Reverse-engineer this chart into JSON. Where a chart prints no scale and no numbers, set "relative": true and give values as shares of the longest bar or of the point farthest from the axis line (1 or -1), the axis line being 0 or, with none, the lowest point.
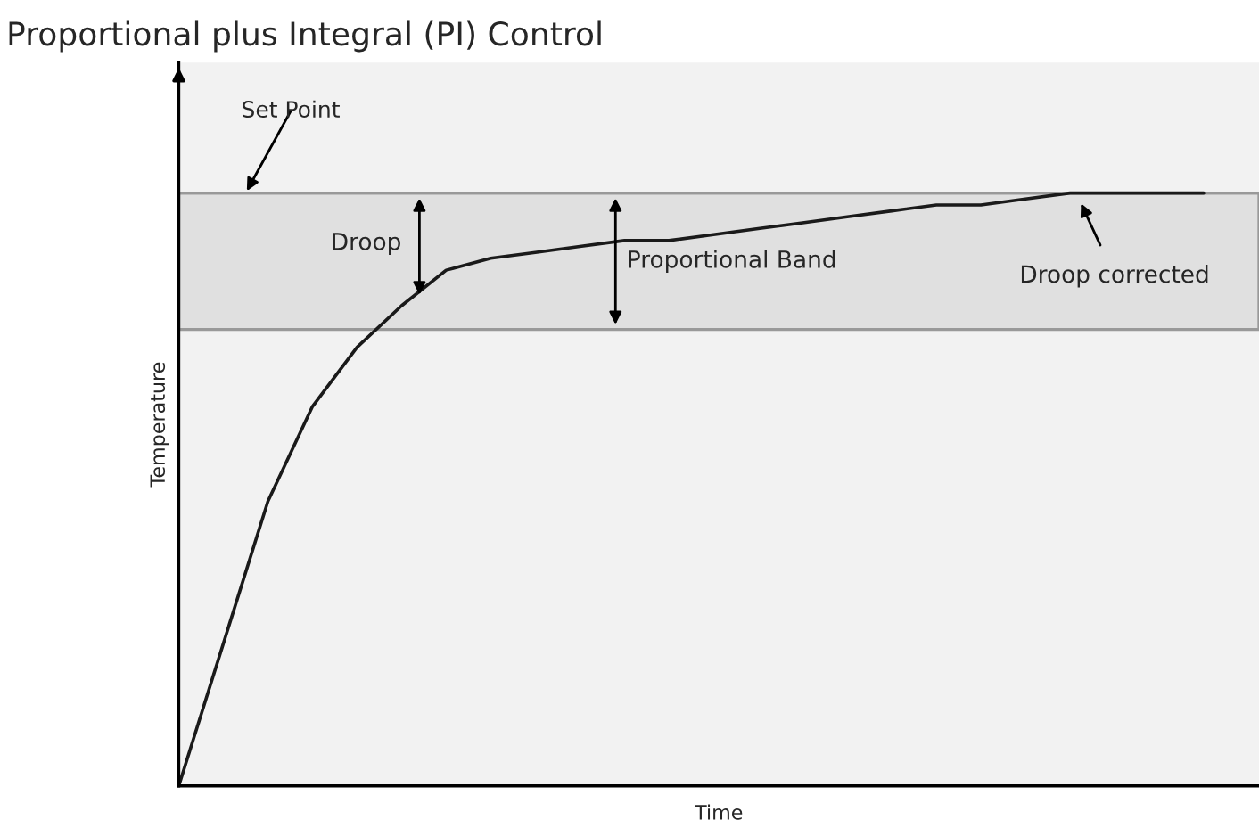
{
  "chart_data": {
    "type": "line",
    "title": "Proportional plus Integral (PI) Control",
    "xlabel": "Time",
    "ylabel": "Temperature",
    "relative": true,
    "categories": [
      null,
      null,
      null,
      null,
      null,
      null,
      null,
      null,
      null,
      null,
      null,
      null,
      null,
      null,
      null,
      null,
      null,
      null,
      null,
      null,
      null,
      null,
      null,
      null,
      null
    ],
    "series": [
      {
        "color": "#1a1a1a",
        "values": [
          0,
          0.24,
          0.48,
          0.64,
          0.74,
          0.81,
          0.87,
          0.89,
          0.9,
          0.91,
          0.92,
          0.92,
          0.93,
          0.94,
          0.95,
          0.96,
          0.97,
          0.98,
          0.98,
          0.99,
          1,
          1,
          1,
          1,
          null
        ]
      }
    ],
    "ref_lines": [
      {
        "axis": "y",
        "value": 1,
        "label": "Set Point",
        "color": "#999999"
      }
    ],
    "bands": [
      {
        "axis": "y",
        "from": 0.77,
        "to": 1,
        "label": "Proportional Band",
        "color": "#e0e0e0"
      }
    ],
    "annotations": [
      "Droop",
      "Droop corrected"
    ],
    "grid": false,
    "legend": false,
    "marker": "none",
    "line_style": "solid"
  }
}
